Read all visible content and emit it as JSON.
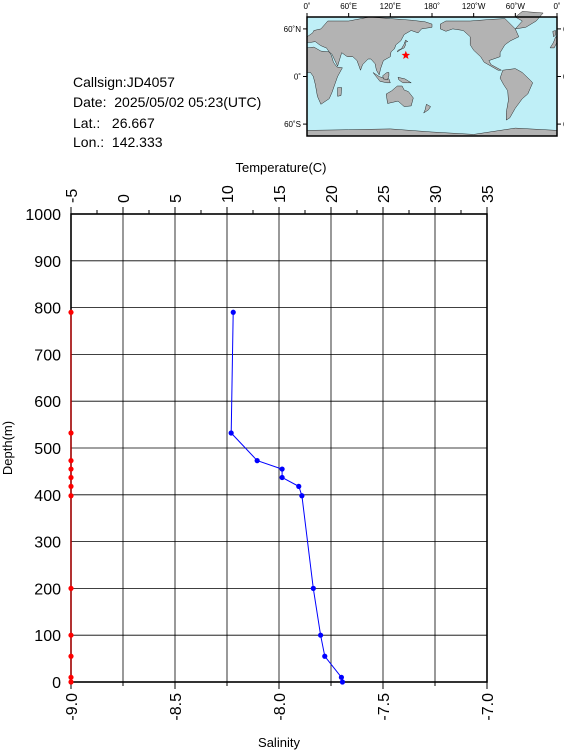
{
  "info": {
    "callsign": "Callsign:JD4057",
    "date": "Date:  2025/05/02 05:23(UTC)",
    "lat": "Lat.:   26.667",
    "lon": "Lon.:  142.333"
  },
  "map": {
    "lon_ticks": [
      "0˚",
      "60˚E",
      "120˚E",
      "180˚",
      "120˚W",
      "60˚W",
      "0˚"
    ],
    "lat_ticks": [
      "60˚N",
      "0˚",
      "60˚S"
    ],
    "ocean_color": "#bfeff7",
    "land_color": "#b3b3b3",
    "marker": {
      "lon": 142.333,
      "lat": 26.667,
      "color": "#ff0000",
      "symbol": "star"
    }
  },
  "chart_data": {
    "type": "line",
    "ylabel": "Depth(m)",
    "ylim": [
      1000,
      0
    ],
    "yticks": [
      0,
      100,
      200,
      300,
      400,
      500,
      600,
      700,
      800,
      900,
      1000
    ],
    "top_axis": {
      "label": "Temperature(C)",
      "range": [
        -5,
        35
      ],
      "ticks": [
        -5,
        0,
        5,
        10,
        15,
        20,
        25,
        30,
        35
      ],
      "tick_labels": [
        "-5",
        "0",
        "5",
        "10",
        "15",
        "20",
        "25",
        "30",
        "35"
      ]
    },
    "bottom_axis": {
      "label": "Salinity",
      "range": [
        -9.0,
        -7.0
      ],
      "ticks": [
        -9.0,
        -8.5,
        -8.0,
        -7.5,
        -7.0
      ],
      "tick_labels": [
        "-9.0",
        "-8.5",
        "-8.0",
        "-7.5",
        "-7.0"
      ]
    },
    "grid": true,
    "series": [
      {
        "axis": "top",
        "color": "#0000ff",
        "points": [
          {
            "depth": 0,
            "value": 21.1
          },
          {
            "depth": 10,
            "value": 21.0
          },
          {
            "depth": 55,
            "value": 19.4
          },
          {
            "depth": 100,
            "value": 19.0
          },
          {
            "depth": 200,
            "value": 18.3
          },
          {
            "depth": 398,
            "value": 17.2
          },
          {
            "depth": 418,
            "value": 16.9
          },
          {
            "depth": 437,
            "value": 15.3
          },
          {
            "depth": 455,
            "value": 15.3
          },
          {
            "depth": 473,
            "value": 12.9
          },
          {
            "depth": 532,
            "value": 10.4
          },
          {
            "depth": 790,
            "value": 10.6
          }
        ]
      },
      {
        "axis": "bottom",
        "color": "#ff0000",
        "points": [
          {
            "depth": 0,
            "value": -9.0
          },
          {
            "depth": 10,
            "value": -9.0
          },
          {
            "depth": 55,
            "value": -9.0
          },
          {
            "depth": 100,
            "value": -9.0
          },
          {
            "depth": 200,
            "value": -9.0
          },
          {
            "depth": 398,
            "value": -9.0
          },
          {
            "depth": 418,
            "value": -9.0
          },
          {
            "depth": 437,
            "value": -9.0
          },
          {
            "depth": 455,
            "value": -9.0
          },
          {
            "depth": 473,
            "value": -9.0
          },
          {
            "depth": 532,
            "value": -9.0
          },
          {
            "depth": 790,
            "value": -9.0
          }
        ]
      }
    ]
  }
}
